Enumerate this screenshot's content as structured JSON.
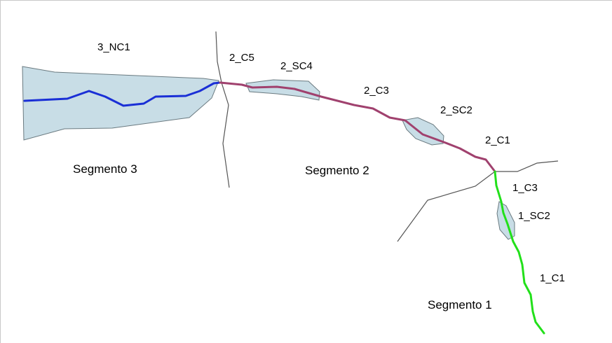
{
  "colors": {
    "background": "#ffffff",
    "frame": "#c8c8c8",
    "area_fill": "#c8dde6",
    "area_stroke": "#6a7a80",
    "tributary": "#555555",
    "segment_3_line": "#1a2fd6",
    "segment_2_line": "#a0416e",
    "segment_1_line": "#22e01a"
  },
  "labels": {
    "nc1_3": "3_NC1",
    "c5_2": "2_C5",
    "sc4_2": "2_SC4",
    "c3_2": "2_C3",
    "sc2_2": "2_SC2",
    "c1_2": "2_C1",
    "c3_1": "1_C3",
    "sc2_1": "1_SC2",
    "c1_1": "1_C1",
    "segment_3": "Segmento 3",
    "segment_2": "Segmento 2",
    "segment_1": "Segmento 1"
  }
}
